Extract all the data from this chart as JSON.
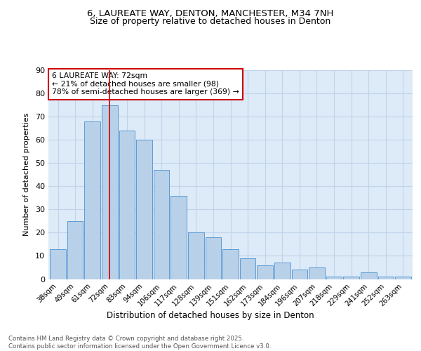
{
  "title1": "6, LAUREATE WAY, DENTON, MANCHESTER, M34 7NH",
  "title2": "Size of property relative to detached houses in Denton",
  "xlabel": "Distribution of detached houses by size in Denton",
  "ylabel": "Number of detached properties",
  "categories": [
    "38sqm",
    "49sqm",
    "61sqm",
    "72sqm",
    "83sqm",
    "94sqm",
    "106sqm",
    "117sqm",
    "128sqm",
    "139sqm",
    "151sqm",
    "162sqm",
    "173sqm",
    "184sqm",
    "196sqm",
    "207sqm",
    "218sqm",
    "229sqm",
    "241sqm",
    "252sqm",
    "263sqm"
  ],
  "bar_values": [
    13,
    25,
    68,
    75,
    64,
    60,
    47,
    36,
    20,
    18,
    13,
    9,
    6,
    7,
    4,
    5,
    1,
    1,
    3,
    1,
    1
  ],
  "bar_color": "#b8d0e8",
  "bar_edge_color": "#5b9bd5",
  "highlight_idx": 3,
  "highlight_line_color": "#cc0000",
  "annotation_text": "6 LAUREATE WAY: 72sqm\n← 21% of detached houses are smaller (98)\n78% of semi-detached houses are larger (369) →",
  "annotation_box_color": "#cc0000",
  "ylim": [
    0,
    90
  ],
  "yticks": [
    0,
    10,
    20,
    30,
    40,
    50,
    60,
    70,
    80,
    90
  ],
  "grid_color": "#c0d4e8",
  "bg_color": "#ddeaf8",
  "footer_text": "Contains HM Land Registry data © Crown copyright and database right 2025.\nContains public sector information licensed under the Open Government Licence v3.0.",
  "title_fontsize": 9.5,
  "subtitle_fontsize": 9
}
